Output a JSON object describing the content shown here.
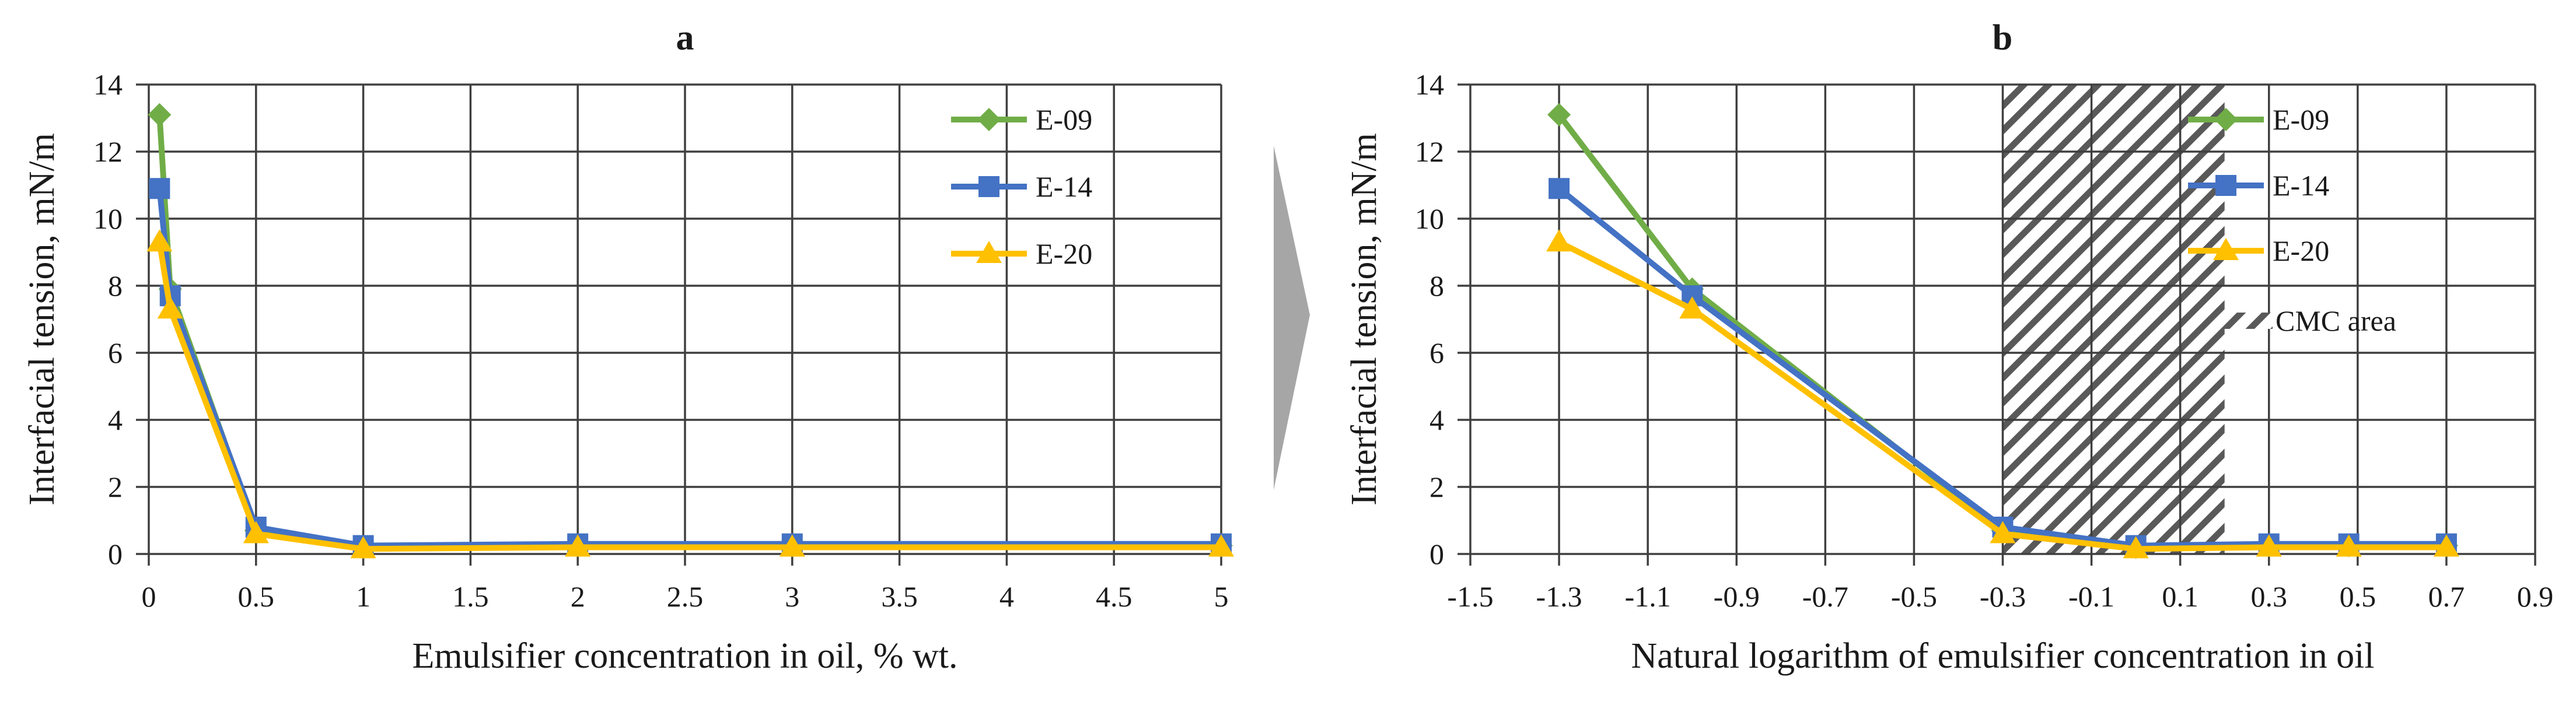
{
  "chart_data": [
    {
      "panel": "a",
      "type": "line",
      "title": "a",
      "xlabel": "Emulsifier concentration in oil, % wt.",
      "ylabel": "Interfacial tension, mN/m",
      "xlim": [
        0,
        5
      ],
      "ylim": [
        0,
        14
      ],
      "xticks": [
        0,
        0.5,
        1,
        1.5,
        2,
        2.5,
        3,
        3.5,
        4,
        4.5,
        5
      ],
      "xtick_labels": [
        "0",
        "0.5",
        "1",
        "1.5",
        "2",
        "2.5",
        "3",
        "3.5",
        "4",
        "4.5",
        "5"
      ],
      "yticks": [
        0,
        2,
        4,
        6,
        8,
        10,
        12,
        14
      ],
      "ytick_labels": [
        "0",
        "2",
        "4",
        "6",
        "8",
        "10",
        "12",
        "14"
      ],
      "grid": true,
      "legend_position": "top-right",
      "series": [
        {
          "name": "E-09",
          "color": "#70ad47",
          "marker": "diamond",
          "x": [
            0.05,
            0.1,
            0.5,
            1,
            2,
            3,
            5
          ],
          "values": [
            13.1,
            7.9,
            0.7,
            0.2,
            0.25,
            0.25,
            0.25
          ]
        },
        {
          "name": "E-14",
          "color": "#4472c4",
          "marker": "square",
          "x": [
            0.05,
            0.1,
            0.5,
            1,
            2,
            3,
            5
          ],
          "values": [
            10.9,
            7.7,
            0.8,
            0.25,
            0.3,
            0.3,
            0.3
          ]
        },
        {
          "name": "E-20",
          "color": "#ffc000",
          "marker": "triangle",
          "x": [
            0.05,
            0.1,
            0.5,
            1,
            2,
            3,
            5
          ],
          "values": [
            9.3,
            7.3,
            0.6,
            0.15,
            0.2,
            0.2,
            0.2
          ]
        }
      ]
    },
    {
      "panel": "b",
      "type": "line",
      "title": "b",
      "xlabel": "Natural logarithm of emulsifier concentration in oil",
      "ylabel": "Interfacial tension, mN/m",
      "xlim": [
        -1.5,
        0.9
      ],
      "ylim": [
        0,
        14
      ],
      "xticks": [
        -1.5,
        -1.3,
        -1.1,
        -0.9,
        -0.7,
        -0.5,
        -0.3,
        -0.1,
        0.1,
        0.3,
        0.5,
        0.7,
        0.9
      ],
      "xtick_labels": [
        "-1.5",
        "-1.3",
        "-1.1",
        "-0.9",
        "-0.7",
        "-0.5",
        "-0.3",
        "-0.1",
        "0.1",
        "0.3",
        "0.5",
        "0.7",
        "0.9"
      ],
      "yticks": [
        0,
        2,
        4,
        6,
        8,
        10,
        12,
        14
      ],
      "ytick_labels": [
        "0",
        "2",
        "4",
        "6",
        "8",
        "10",
        "12",
        "14"
      ],
      "grid": true,
      "legend_position": "top-right",
      "shaded_region": {
        "label": "CMC area",
        "x_range": [
          -0.3,
          0.2
        ],
        "pattern": "diagonal-hatch"
      },
      "series": [
        {
          "name": "E-09",
          "color": "#70ad47",
          "marker": "diamond",
          "x": [
            -1.3,
            -1.0,
            -0.3,
            0.0,
            0.3,
            0.48,
            0.7
          ],
          "values": [
            13.1,
            7.9,
            0.7,
            0.2,
            0.25,
            0.25,
            0.25
          ]
        },
        {
          "name": "E-14",
          "color": "#4472c4",
          "marker": "square",
          "x": [
            -1.3,
            -1.0,
            -0.3,
            0.0,
            0.3,
            0.48,
            0.7
          ],
          "values": [
            10.9,
            7.7,
            0.8,
            0.25,
            0.3,
            0.3,
            0.3
          ]
        },
        {
          "name": "E-20",
          "color": "#ffc000",
          "marker": "triangle",
          "x": [
            -1.3,
            -1.0,
            -0.3,
            0.0,
            0.3,
            0.48,
            0.7
          ],
          "values": [
            9.3,
            7.3,
            0.6,
            0.15,
            0.2,
            0.2,
            0.2
          ]
        }
      ]
    }
  ],
  "separator_arrow": {
    "color": "#a6a6a6",
    "icon": "chevron-right-icon"
  }
}
